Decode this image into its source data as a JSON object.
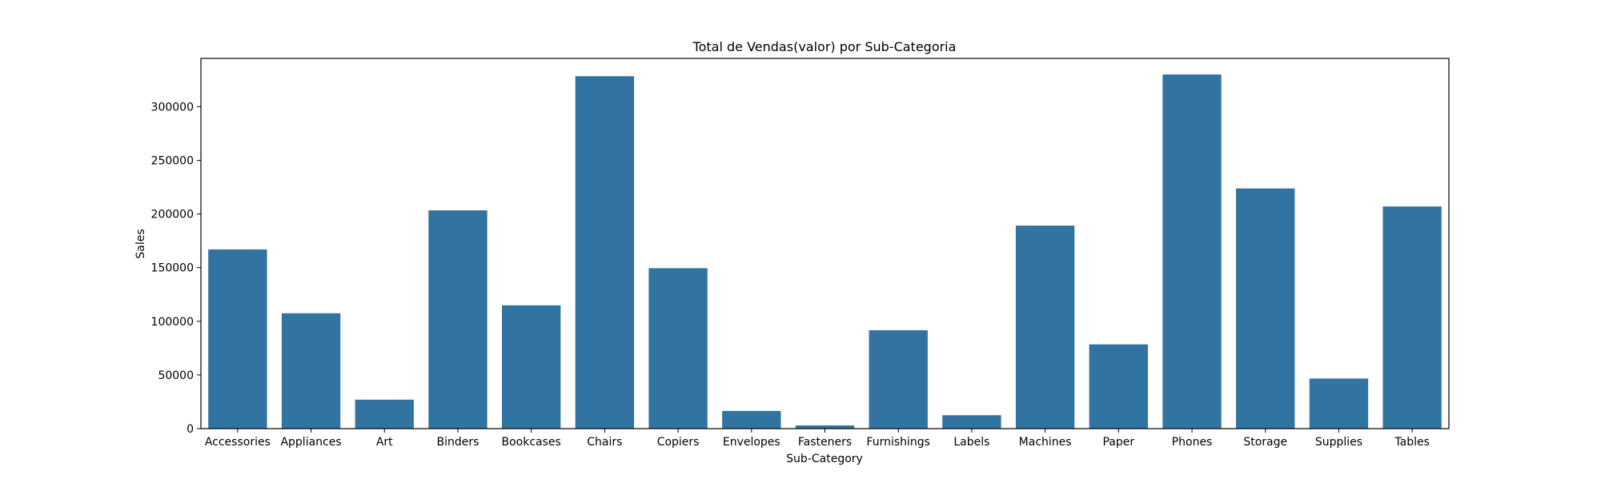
{
  "chart_data": {
    "type": "bar",
    "title": "Total de Vendas(valor) por Sub-Categoria",
    "xlabel": "Sub-Category",
    "ylabel": "Sales",
    "categories": [
      "Accessories",
      "Appliances",
      "Art",
      "Binders",
      "Bookcases",
      "Chairs",
      "Copiers",
      "Envelopes",
      "Fasteners",
      "Furnishings",
      "Labels",
      "Machines",
      "Paper",
      "Phones",
      "Storage",
      "Supplies",
      "Tables"
    ],
    "values": [
      167000,
      107500,
      27000,
      203400,
      114900,
      328400,
      149500,
      16500,
      3000,
      91700,
      12500,
      189200,
      78500,
      330000,
      223800,
      46700,
      207000
    ],
    "ylim": [
      0,
      345000
    ],
    "yticks": [
      0,
      50000,
      100000,
      150000,
      200000,
      250000,
      300000
    ],
    "ytick_labels": [
      "0",
      "50000",
      "100000",
      "150000",
      "200000",
      "250000",
      "300000"
    ],
    "bar_color": "#3274a1",
    "grid": false,
    "legend": "none"
  }
}
